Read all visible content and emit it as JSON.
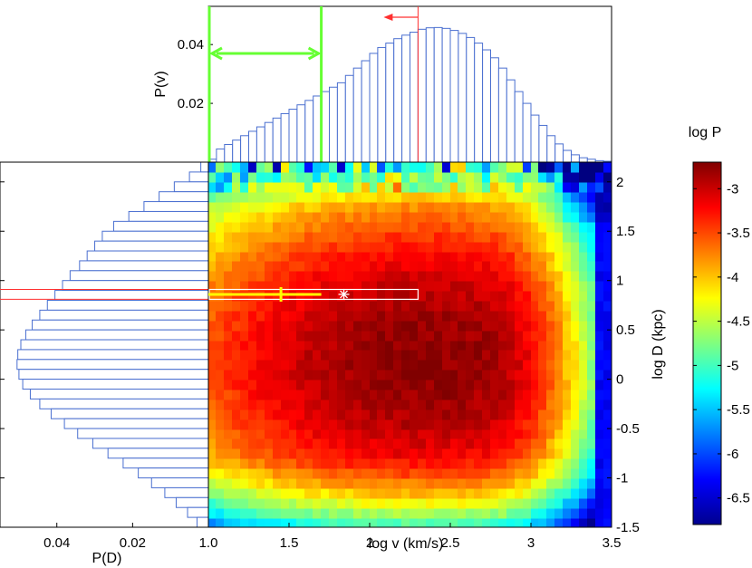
{
  "chart_data": {
    "type": "heatmap",
    "title": "",
    "colorbar": {
      "label": "log P",
      "range": [
        -6.8,
        -2.7
      ],
      "ticks": [
        -6.5,
        -6,
        -5.5,
        -5,
        -4.5,
        -4,
        -3.5,
        -3
      ],
      "tick_labels": [
        "-6.5",
        "-6",
        "-5.5",
        "-5",
        "-4.5",
        "-4",
        "-3.5",
        "-3"
      ]
    },
    "main": {
      "xlabel": "log v (km/s)",
      "ylabel": "log D (kpc)",
      "xlim": [
        1.0,
        3.5
      ],
      "ylim": [
        -1.5,
        2.2
      ],
      "xticks": [
        1.0,
        1.5,
        2,
        2.5,
        3,
        3.5
      ],
      "xtick_labels": [
        "1.0",
        "1.5",
        "2",
        "2.5",
        "3",
        "3.5"
      ],
      "yticks": [
        -1.5,
        -1,
        -0.5,
        0,
        0.5,
        1,
        1.5,
        2
      ],
      "ytick_labels": [
        "-1.5",
        "-1",
        "-0.5",
        "0",
        "0.5",
        "1",
        "1.5",
        "2"
      ],
      "grid": false,
      "peak": {
        "logv": 2.32,
        "logD": 0.2
      },
      "selection_box": {
        "logv_range": [
          1.0,
          2.3
        ],
        "logD_range": [
          0.81,
          0.91
        ]
      },
      "measured_point": {
        "logv": 1.45,
        "logD": 0.86,
        "logv_err_range": [
          1.0,
          1.7
        ]
      },
      "star_point": {
        "logv": 1.84,
        "logD": 0.86
      }
    },
    "top_histogram": {
      "ylabel": "P(v)",
      "xlim": [
        1.0,
        3.5
      ],
      "ylim": [
        0,
        0.053
      ],
      "yticks": [
        0.02,
        0.04
      ],
      "ytick_labels": [
        "0.02",
        "0.04"
      ],
      "bin_width": 0.05,
      "bin_starts": [
        1.0,
        1.05,
        1.1,
        1.15,
        1.2,
        1.25,
        1.3,
        1.35,
        1.4,
        1.45,
        1.5,
        1.55,
        1.6,
        1.65,
        1.7,
        1.75,
        1.8,
        1.85,
        1.9,
        1.95,
        2.0,
        2.05,
        2.1,
        2.15,
        2.2,
        2.25,
        2.3,
        2.35,
        2.4,
        2.45,
        2.5,
        2.55,
        2.6,
        2.65,
        2.7,
        2.75,
        2.8,
        2.85,
        2.9,
        2.95,
        3.0,
        3.05,
        3.1,
        3.15,
        3.2,
        3.25,
        3.3,
        3.35,
        3.4,
        3.45
      ],
      "values": [
        0.001,
        0.0045,
        0.006,
        0.0075,
        0.009,
        0.0105,
        0.012,
        0.0135,
        0.015,
        0.0165,
        0.018,
        0.0195,
        0.021,
        0.0225,
        0.024,
        0.0255,
        0.027,
        0.0295,
        0.032,
        0.0345,
        0.037,
        0.039,
        0.0405,
        0.042,
        0.0432,
        0.0442,
        0.0452,
        0.0457,
        0.0458,
        0.0455,
        0.0448,
        0.0438,
        0.0424,
        0.0405,
        0.0382,
        0.0355,
        0.032,
        0.028,
        0.024,
        0.02,
        0.016,
        0.0125,
        0.009,
        0.0062,
        0.004,
        0.0025,
        0.0015,
        0.001,
        0.0005,
        0.0003
      ],
      "green_lines_logv": [
        1.0,
        1.7
      ],
      "red_line_logv": 2.3,
      "red_arrow_direction": "left"
    },
    "left_histogram": {
      "xlabel": "P(D)",
      "xlim": [
        0.055,
        0
      ],
      "xticks": [
        0.04,
        0.02
      ],
      "xtick_labels": [
        "0.04",
        "0.02"
      ],
      "bin_edges_logD": [
        2.2,
        2.1,
        2.0,
        1.9,
        1.8,
        1.7,
        1.6,
        1.5,
        1.4,
        1.3,
        1.2,
        1.1,
        1.0,
        0.9,
        0.8,
        0.7,
        0.6,
        0.5,
        0.4,
        0.3,
        0.2,
        0.1,
        0.0,
        -0.1,
        -0.2,
        -0.3,
        -0.4,
        -0.5,
        -0.6,
        -0.7,
        -0.8,
        -0.9,
        -1.0,
        -1.1,
        -1.2,
        -1.3,
        -1.4,
        -1.5
      ],
      "values": [
        0.002,
        0.005,
        0.009,
        0.013,
        0.017,
        0.021,
        0.025,
        0.028,
        0.03,
        0.032,
        0.034,
        0.0365,
        0.0385,
        0.0405,
        0.0425,
        0.0445,
        0.0465,
        0.0482,
        0.0495,
        0.0503,
        0.0505,
        0.05,
        0.049,
        0.047,
        0.0445,
        0.0415,
        0.038,
        0.0345,
        0.0305,
        0.0265,
        0.0225,
        0.0185,
        0.015,
        0.0115,
        0.0085,
        0.0055,
        0.003
      ],
      "red_lines_logD": [
        0.81,
        0.91
      ]
    }
  }
}
